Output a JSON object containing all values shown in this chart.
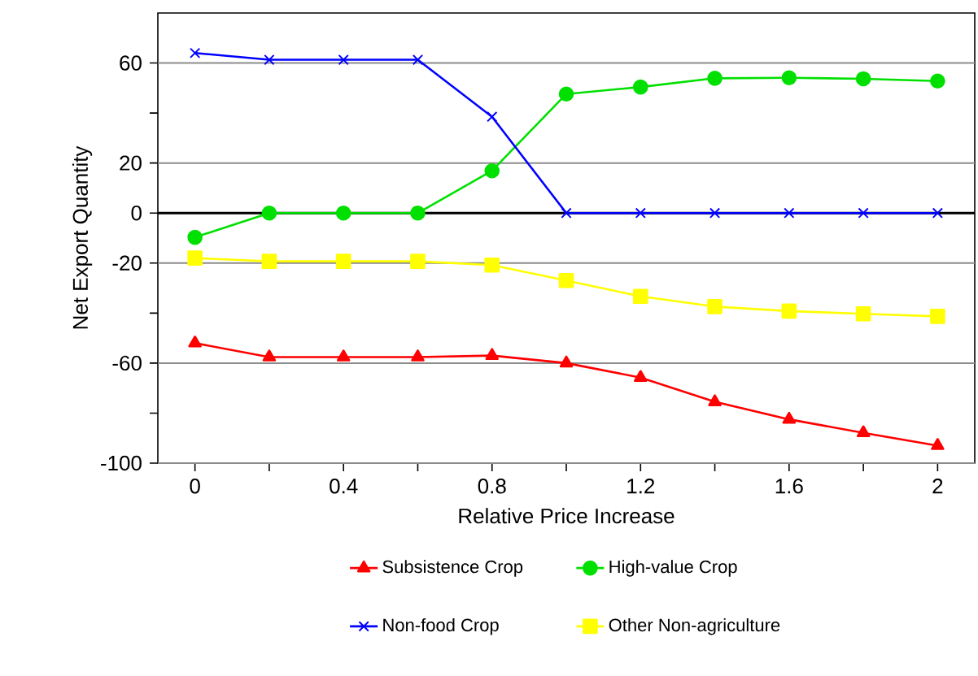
{
  "chart_data": {
    "type": "line",
    "xlabel": "Relative Price Increase",
    "ylabel": "Net Export Quantity",
    "x": [
      0,
      0.2,
      0.4,
      0.6,
      0.8,
      1.0,
      1.2,
      1.4,
      1.6,
      1.8,
      2.0
    ],
    "series": [
      {
        "name": "Subsistence Crop",
        "color": "#ff0000",
        "marker": "triangle",
        "values": [
          -52,
          -57.6,
          -57.6,
          -57.6,
          -57,
          -60,
          -65.8,
          -75.5,
          -82.5,
          -87.9,
          -93
        ]
      },
      {
        "name": "High-value Crop",
        "color": "#00e000",
        "marker": "circle",
        "values": [
          -9.7,
          0,
          0,
          0,
          16.9,
          47.6,
          50.4,
          53.9,
          54.1,
          53.7,
          52.8
        ]
      },
      {
        "name": "Non-food Crop",
        "color": "#0000ff",
        "marker": "cross",
        "values": [
          64,
          61.3,
          61.3,
          61.3,
          38.5,
          0,
          0,
          0,
          0,
          0,
          0
        ]
      },
      {
        "name": "Other Non-agriculture",
        "color": "#ffff00",
        "marker": "square",
        "values": [
          -18,
          -19.3,
          -19.3,
          -19.3,
          -20.8,
          -27,
          -33.3,
          -37.4,
          -39.2,
          -40.3,
          -41.3
        ]
      }
    ],
    "xlim": [
      -0.1,
      2.1
    ],
    "xticks": [
      0,
      {
        "value": 0.2,
        "label": null
      },
      0.4,
      {
        "value": 0.6,
        "label": null
      },
      0.8,
      {
        "value": 1.0,
        "label": null
      },
      1.2,
      {
        "value": 1.4,
        "label": null
      },
      1.6,
      {
        "value": 1.8,
        "label": null
      },
      2
    ],
    "ylim": [
      -100,
      80
    ],
    "yticks": [
      -100,
      {
        "value": -80,
        "label": null
      },
      -60,
      {
        "value": -40,
        "label": null
      },
      -20,
      0,
      20,
      {
        "value": 40,
        "label": null
      },
      60
    ],
    "ref_lines": [
      {
        "axis": "y",
        "value": 0,
        "color": "#000000"
      }
    ],
    "grid": "y",
    "legend": "bottom",
    "line_style": "solid"
  }
}
